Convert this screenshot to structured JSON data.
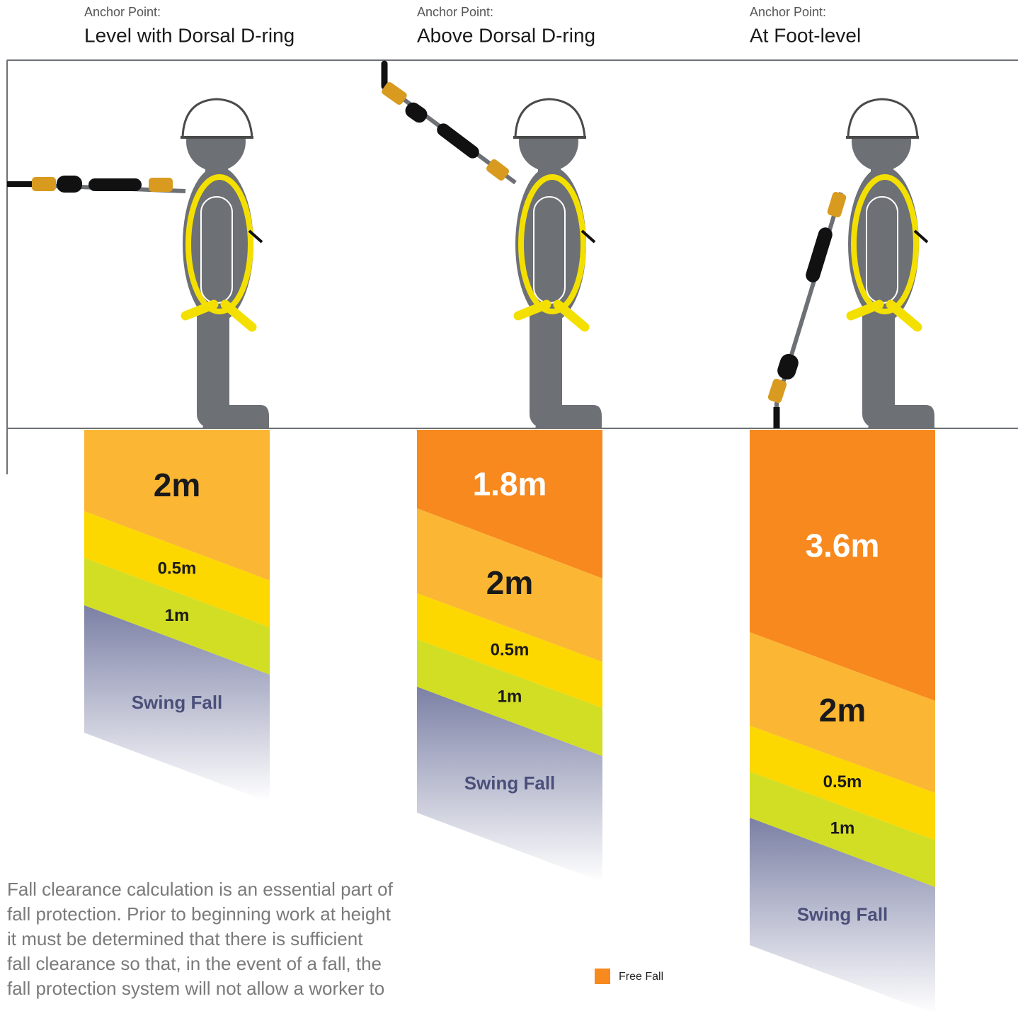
{
  "columns": [
    {
      "label": "Anchor Point:",
      "title": "Level with Dorsal D-ring",
      "segments": [
        "2m",
        "0.5m",
        "1m",
        "Swing Fall"
      ]
    },
    {
      "label": "Anchor Point:",
      "title": "Above Dorsal D-ring",
      "segments": [
        "1.8m",
        "2m",
        "0.5m",
        "1m",
        "Swing Fall"
      ]
    },
    {
      "label": "Anchor Point:",
      "title": "At Foot-level",
      "segments": [
        "3.6m",
        "2m",
        "0.5m",
        "1m",
        "Swing Fall"
      ]
    }
  ],
  "paragraph": [
    "Fall clearance calculation is an essential part of",
    "fall protection. Prior to beginning work at height",
    "it must be determined that there is sufficient",
    "fall clearance so that, in the event of a fall, the",
    "fall protection system will not allow a worker to"
  ],
  "legend": {
    "label": "Free Fall"
  }
}
